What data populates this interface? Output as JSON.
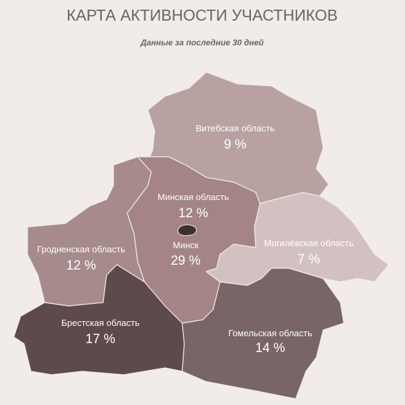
{
  "header": {
    "title": "КАРТА АКТИВНОСТИ УЧАСТНИКОВ",
    "subtitle": "Данные за последние 30 дней"
  },
  "regions": [
    {
      "name": "Витебская область",
      "label": "9 %"
    },
    {
      "name": "Минская область",
      "label": "12 %"
    },
    {
      "name": "Минск",
      "label": "29 %"
    },
    {
      "name": "Гродненская область",
      "label": "12 %"
    },
    {
      "name": "Могилёвская область",
      "label": "7 %"
    },
    {
      "name": "Брестская область",
      "label": "17 %"
    },
    {
      "name": "Гомельская область",
      "label": "14 %"
    }
  ]
}
